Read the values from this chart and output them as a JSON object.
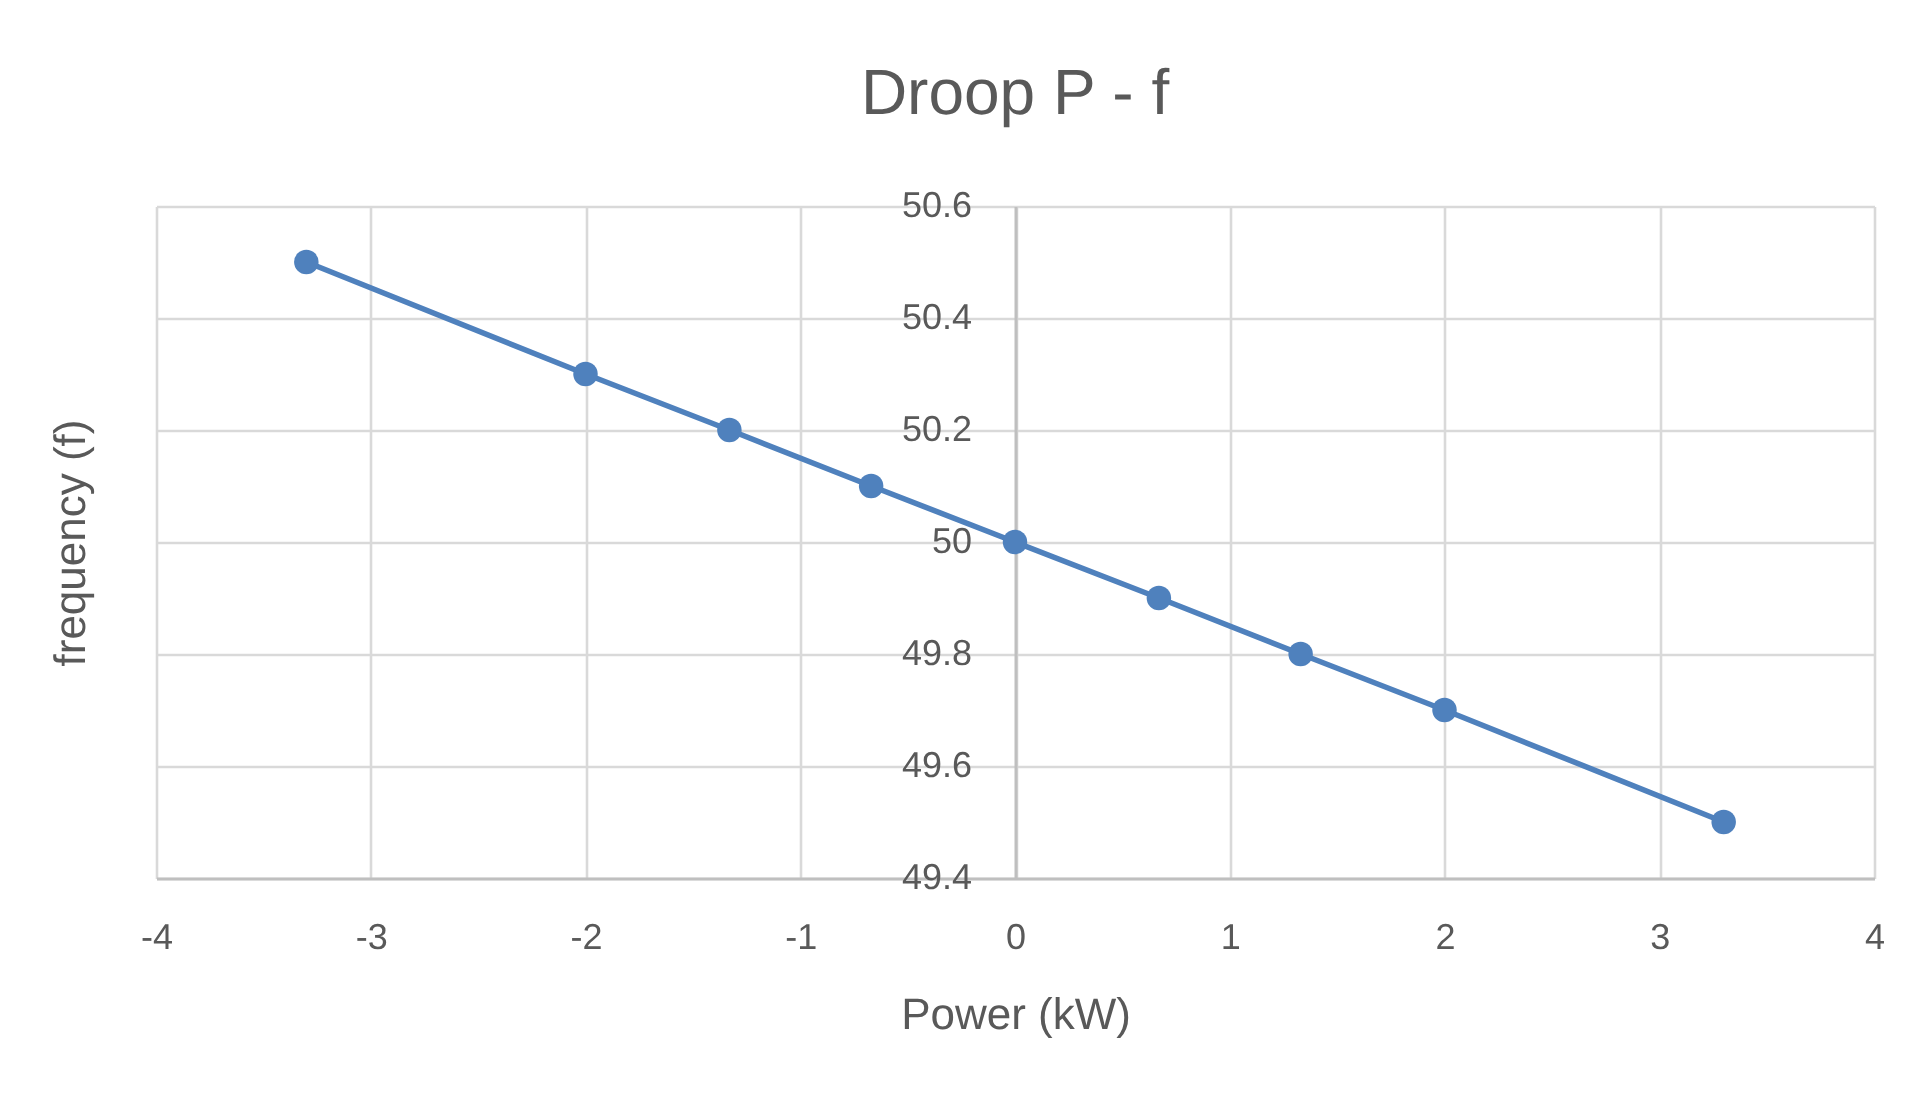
{
  "chart_data": {
    "type": "line",
    "title": "Droop P - f",
    "xlabel": "Power (kW)",
    "ylabel": "frequency (f)",
    "x": [
      -3.3,
      -2,
      -1.33,
      -0.67,
      0,
      0.67,
      1.33,
      2,
      3.3
    ],
    "series": [
      {
        "color": "#4f81bd",
        "values": [
          50.5,
          50.3,
          50.2,
          50.1,
          50,
          49.9,
          49.8,
          49.7,
          49.5
        ]
      }
    ],
    "xlim": [
      -4,
      4
    ],
    "xticks": [
      -4,
      -3,
      -2,
      -1,
      0,
      1,
      2,
      3,
      4
    ],
    "ylim": [
      49.4,
      50.6
    ],
    "yticks": [
      49.4,
      49.6,
      49.8,
      50,
      50.2,
      50.4,
      50.6
    ],
    "grid": true,
    "marker": "circle",
    "line_style": "solid"
  }
}
